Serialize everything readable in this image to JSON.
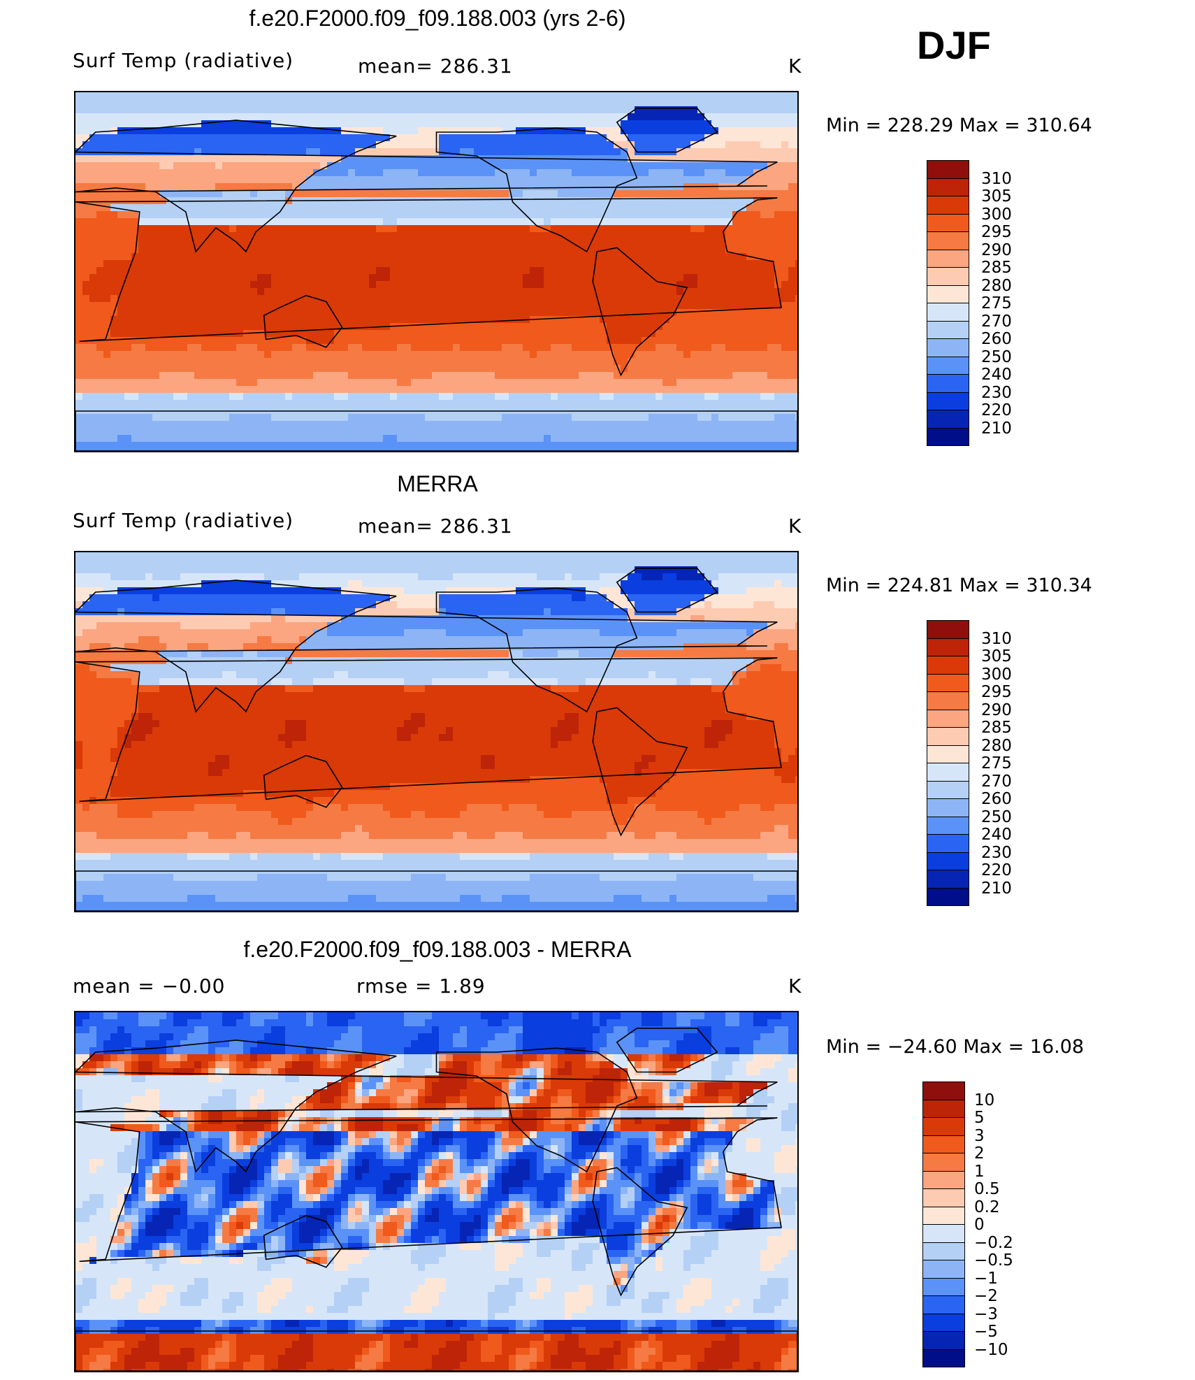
{
  "season": "DJF",
  "panels": [
    {
      "title": "f.e20.F2000.f09_f09.188.003 (yrs 2-6)",
      "left_label": "Surf Temp (radiative)",
      "mid_label": "mean=  286.31",
      "right_label": "K",
      "minmax": "Min  =  228.29  Max  =  310.64",
      "field": "model_temperature"
    },
    {
      "title": "MERRA",
      "left_label": "Surf Temp (radiative)",
      "mid_label": "mean=  286.31",
      "right_label": "K",
      "minmax": "Min  =  224.81  Max  =  310.34",
      "field": "merra_temperature"
    },
    {
      "title": "f.e20.F2000.f09_f09.188.003 - MERRA",
      "left_label": "mean  =    −0.00",
      "mid_label": "rmse  =     1.89",
      "right_label": "K",
      "minmax": "Min  =  −24.60  Max  =    16.08",
      "field": "difference"
    }
  ],
  "colorbars": {
    "temperature": {
      "levels": [
        "310",
        "305",
        "300",
        "295",
        "290",
        "285",
        "280",
        "275",
        "270",
        "260",
        "250",
        "240",
        "230",
        "220",
        "210"
      ],
      "colors": [
        "#8e0f0c",
        "#bd2408",
        "#d93a08",
        "#f05a1c",
        "#f57a43",
        "#fba581",
        "#fdcbb2",
        "#fee6d7",
        "#d6e6f8",
        "#b4d0f5",
        "#8db5f6",
        "#5b92f7",
        "#2a64f2",
        "#0b3ede",
        "#0625b4",
        "#000e8a"
      ]
    },
    "difference": {
      "levels": [
        "10",
        "5",
        "3",
        "2",
        "1",
        "0.5",
        "0.2",
        "0",
        "−0.2",
        "−0.5",
        "−1",
        "−2",
        "−3",
        "−5",
        "−10"
      ],
      "colors": [
        "#8e0f0c",
        "#bd2408",
        "#d93a08",
        "#f05a1c",
        "#f57a43",
        "#fba581",
        "#fdcbb2",
        "#fee6d7",
        "#d6e6f8",
        "#b4d0f5",
        "#8db5f6",
        "#5b92f7",
        "#2a64f2",
        "#0b3ede",
        "#0625b4",
        "#000e8a"
      ]
    }
  }
}
